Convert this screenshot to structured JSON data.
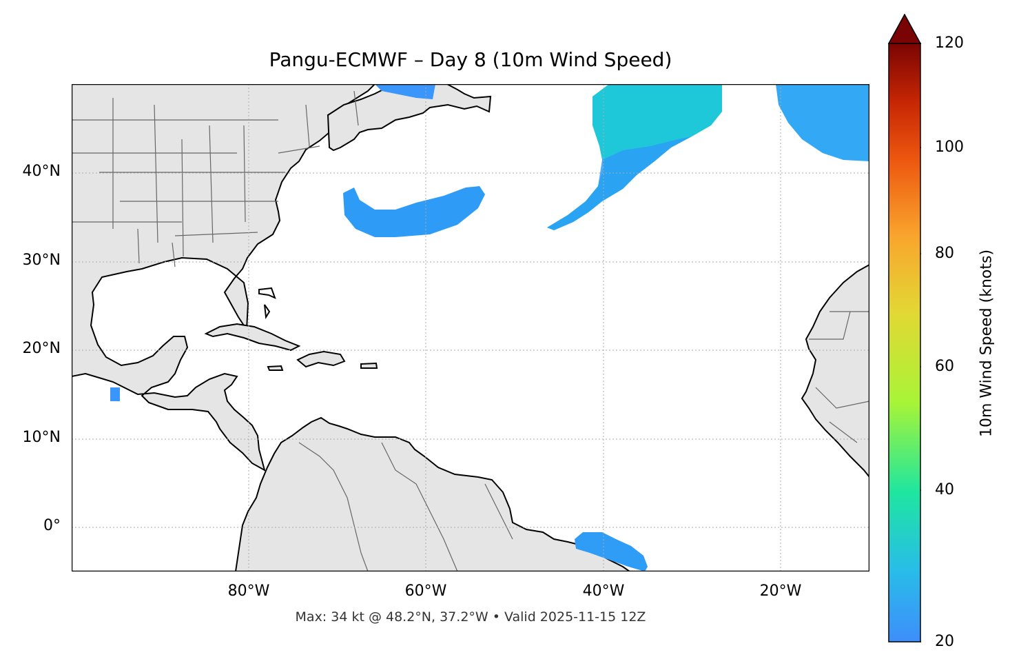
{
  "title": "Pangu-ECMWF – Day 8 (10m Wind Speed)",
  "caption": "Max: 34 kt @ 48.2°N, 37.2°W • Valid 2025-11-15 12Z",
  "map": {
    "projection": "PlateCarree",
    "lon_range": [
      -100,
      -10
    ],
    "lat_range": [
      -5,
      50
    ],
    "land_color": "#e5e5e5",
    "ocean_color": "#ffffff",
    "coast_color": "#000000",
    "border_color": "#666666",
    "gridlines": "dotted",
    "lat_ticks": [
      "40°N",
      "30°N",
      "20°N",
      "10°N",
      "0°"
    ],
    "lon_ticks": [
      "80°W",
      "60°W",
      "40°W",
      "20°W"
    ]
  },
  "wind_features": [
    {
      "name": "mid-atlantic-jet",
      "color": "#2e9cf7"
    },
    {
      "name": "central-atlantic-low",
      "color": "#1fc8d9"
    },
    {
      "name": "northeast-atlantic",
      "color": "#33a8f4"
    },
    {
      "name": "equatorial-patch",
      "color": "#2f9df6"
    },
    {
      "name": "labrador-strip",
      "color": "#3a96fb"
    },
    {
      "name": "pacific-spot",
      "color": "#3a96fb"
    }
  ],
  "colorbar": {
    "label": "10m Wind Speed (knots)",
    "min": 20,
    "max": 120,
    "extend": "max",
    "colormap": "turbo",
    "ticks": [
      "20",
      "40",
      "60",
      "80",
      "100",
      "120"
    ],
    "colors": [
      "#3e8efb",
      "#28bde8",
      "#1ee6a0",
      "#a8f436",
      "#e2d834",
      "#f9a42c",
      "#ee5a10",
      "#c82704",
      "#7a0403"
    ]
  }
}
